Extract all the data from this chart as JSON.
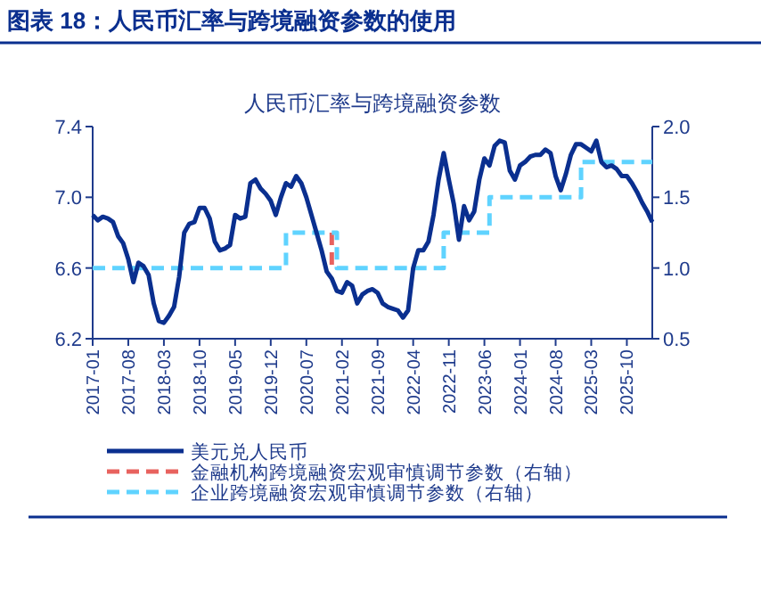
{
  "chart_data": {
    "type": "line",
    "title": "图表 18：人民币汇率与跨境融资参数的使用",
    "subtitle": "人民币汇率与跨境融资参数",
    "xlim": [
      "2017-01",
      "2026-03"
    ],
    "xticks": [
      "2017-01",
      "2017-08",
      "2018-03",
      "2018-10",
      "2019-05",
      "2019-12",
      "2020-07",
      "2021-02",
      "2021-09",
      "2022-04",
      "2022-11",
      "2023-06",
      "2024-01",
      "2024-08",
      "2025-03",
      "2025-10"
    ],
    "ylim": [
      6.2,
      7.4
    ],
    "yticks": [
      6.2,
      6.6,
      {
        "value": 7.0,
        "label": "7.0"
      },
      7.4
    ],
    "y2lim": [
      0.5,
      2.0
    ],
    "y2ticks": [
      {
        "value": 0.5,
        "label": "0.5"
      },
      {
        "value": 1.0,
        "label": "1.0"
      },
      {
        "value": 1.5,
        "label": "1.5"
      },
      {
        "value": 2.0,
        "label": "2.0"
      }
    ],
    "grid": false,
    "legend": "bottom",
    "series": [
      {
        "name": "美元兑人民币",
        "color": "#0a2f8f",
        "x": [
          "2017-01",
          "2017-02",
          "2017-03",
          "2017-04",
          "2017-05",
          "2017-06",
          "2017-07",
          "2017-08",
          "2017-09",
          "2017-10",
          "2017-11",
          "2017-12",
          "2018-01",
          "2018-02",
          "2018-03",
          "2018-04",
          "2018-05",
          "2018-06",
          "2018-07",
          "2018-08",
          "2018-09",
          "2018-10",
          "2018-11",
          "2018-12",
          "2019-01",
          "2019-02",
          "2019-03",
          "2019-04",
          "2019-05",
          "2019-06",
          "2019-07",
          "2019-08",
          "2019-09",
          "2019-10",
          "2019-11",
          "2019-12",
          "2020-01",
          "2020-02",
          "2020-03",
          "2020-04",
          "2020-05",
          "2020-06",
          "2020-07",
          "2020-08",
          "2020-09",
          "2020-10",
          "2020-11",
          "2020-12",
          "2021-01",
          "2021-02",
          "2021-03",
          "2021-04",
          "2021-05",
          "2021-06",
          "2021-07",
          "2021-08",
          "2021-09",
          "2021-10",
          "2021-11",
          "2021-12",
          "2022-01",
          "2022-02",
          "2022-03",
          "2022-04",
          "2022-05",
          "2022-06",
          "2022-07",
          "2022-08",
          "2022-09",
          "2022-10",
          "2022-11",
          "2022-12",
          "2023-01",
          "2023-02",
          "2023-03",
          "2023-04",
          "2023-05",
          "2023-06",
          "2023-07",
          "2023-08",
          "2023-09",
          "2023-10",
          "2023-11",
          "2023-12",
          "2024-01",
          "2024-02",
          "2024-03",
          "2024-04",
          "2024-05",
          "2024-06",
          "2024-07",
          "2024-08",
          "2024-09",
          "2024-10",
          "2024-11",
          "2024-12",
          "2025-01",
          "2025-02",
          "2025-03",
          "2025-04",
          "2025-05",
          "2025-06",
          "2025-07",
          "2025-08",
          "2025-09",
          "2025-10",
          "2025-11",
          "2025-12",
          "2026-01",
          "2026-02",
          "2026-03"
        ],
        "values": [
          6.9,
          6.87,
          6.89,
          6.88,
          6.86,
          6.78,
          6.74,
          6.65,
          6.52,
          6.63,
          6.61,
          6.56,
          6.4,
          6.3,
          6.29,
          6.33,
          6.38,
          6.55,
          6.8,
          6.85,
          6.86,
          6.94,
          6.94,
          6.88,
          6.75,
          6.7,
          6.71,
          6.73,
          6.9,
          6.88,
          6.89,
          7.08,
          7.1,
          7.05,
          7.02,
          6.98,
          6.9,
          7.0,
          7.08,
          7.06,
          7.12,
          7.08,
          7.0,
          6.9,
          6.8,
          6.7,
          6.58,
          6.54,
          6.47,
          6.46,
          6.52,
          6.5,
          6.4,
          6.45,
          6.47,
          6.48,
          6.46,
          6.4,
          6.38,
          6.37,
          6.36,
          6.32,
          6.36,
          6.6,
          6.7,
          6.7,
          6.75,
          6.9,
          7.1,
          7.25,
          7.1,
          6.96,
          6.76,
          6.95,
          6.87,
          6.92,
          7.1,
          7.22,
          7.18,
          7.29,
          7.32,
          7.31,
          7.15,
          7.1,
          7.18,
          7.2,
          7.23,
          7.24,
          7.24,
          7.27,
          7.25,
          7.12,
          7.04,
          7.13,
          7.24,
          7.3,
          7.3,
          7.28,
          7.26,
          7.32,
          7.2,
          7.17,
          7.18,
          7.16,
          7.12,
          7.12,
          7.08,
          7.03,
          6.97,
          6.92,
          6.86
        ]
      },
      {
        "name": "金融机构跨境融资宏观审慎调节参数（右轴）",
        "type": "step",
        "axis": "y2",
        "line_style": "dashed",
        "color": "#e8625e",
        "x": [
          "2020-12",
          "2020-12"
        ],
        "values": [
          1.25,
          1.0
        ]
      },
      {
        "name": "企业跨境融资宏观审慎调节参数（右轴）",
        "type": "step",
        "axis": "y2",
        "line_style": "dashed",
        "color": "#5fd3ff",
        "x": [
          "2017-01",
          "2020-03",
          "2021-01",
          "2022-10",
          "2023-07",
          "2025-01",
          "2026-03"
        ],
        "values": [
          1.0,
          1.25,
          1.0,
          1.25,
          1.5,
          1.75,
          1.75
        ]
      }
    ]
  }
}
